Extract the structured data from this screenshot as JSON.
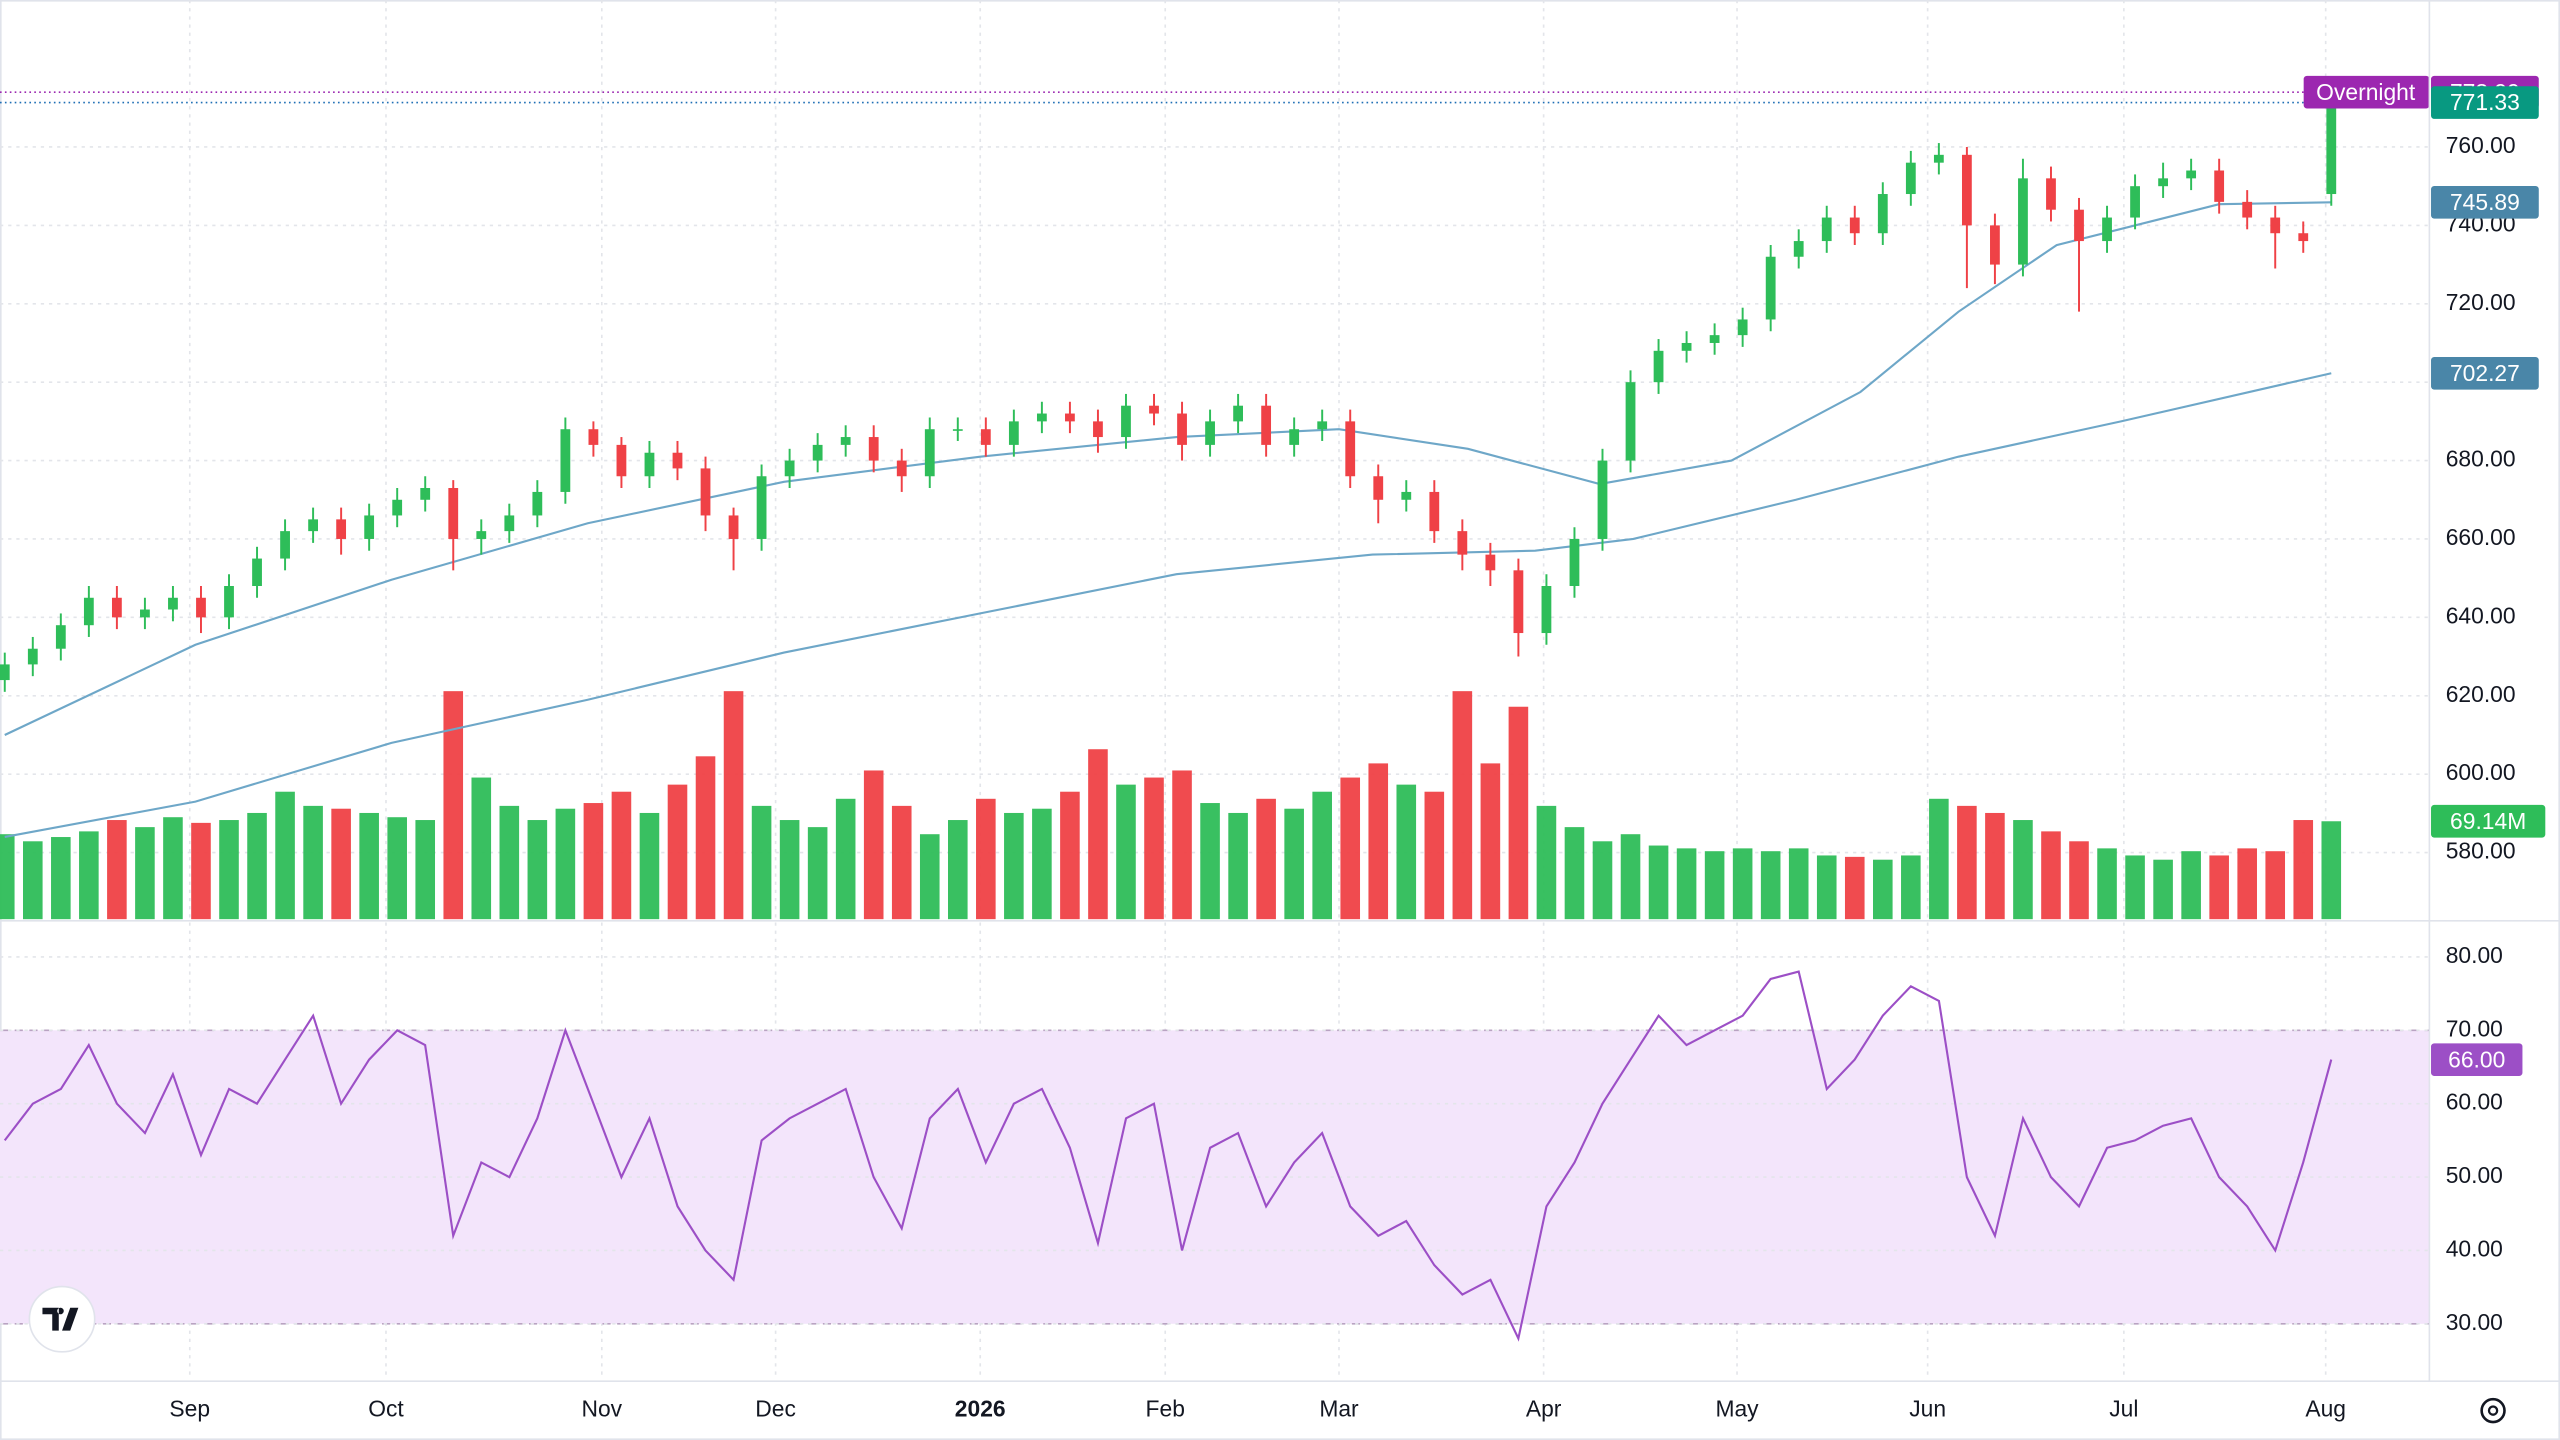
{
  "chart_data": [
    {
      "type": "candlestick",
      "up_color": "#2ebd59",
      "down_color": "#ef4146",
      "xlim": [
        -0.17,
        86.5
      ],
      "xticks": [
        {
          "value": 6.6,
          "label": "Sep"
        },
        {
          "value": 13.6,
          "label": "Oct"
        },
        {
          "value": 21.3,
          "label": "Nov"
        },
        {
          "value": 27.5,
          "label": "Dec"
        },
        {
          "value": 34.8,
          "label": "2026"
        },
        {
          "value": 41.4,
          "label": "Feb"
        },
        {
          "value": 47.6,
          "label": "Mar"
        },
        {
          "value": 54.9,
          "label": "Apr"
        },
        {
          "value": 61.8,
          "label": "May"
        },
        {
          "value": 68.6,
          "label": "Jun"
        },
        {
          "value": 75.6,
          "label": "Jul"
        },
        {
          "value": 82.8,
          "label": "Aug"
        }
      ],
      "ylim": [
        563,
        797.5
      ],
      "yticks": [
        {
          "value": 580,
          "label": "580.00"
        },
        {
          "value": 600,
          "label": "600.00"
        },
        {
          "value": 620,
          "label": "620.00"
        },
        {
          "value": 640,
          "label": "640.00"
        },
        {
          "value": 660,
          "label": "660.00"
        },
        {
          "value": 680,
          "label": "680.00"
        },
        {
          "value": 700,
          "label": "700.00"
        },
        {
          "value": 720,
          "label": "720.00"
        },
        {
          "value": 740,
          "label": "740.00"
        },
        {
          "value": 760,
          "label": "760.00"
        }
      ],
      "grid": true,
      "open": [
        624,
        628,
        632,
        638,
        645,
        640,
        642,
        645,
        640,
        648,
        655,
        662,
        665,
        660,
        666,
        670,
        673,
        660,
        662,
        666,
        672,
        688,
        684,
        676,
        682,
        678,
        666,
        660,
        676,
        680,
        684,
        686,
        680,
        676,
        688,
        688,
        684,
        690,
        692,
        690,
        686,
        694,
        692,
        684,
        690,
        694,
        684,
        688,
        690,
        676,
        670,
        672,
        662,
        656,
        652,
        636,
        648,
        660,
        680,
        700,
        708,
        710,
        712,
        716,
        732,
        736,
        742,
        738,
        748,
        756,
        758,
        740,
        730,
        752,
        744,
        736,
        742,
        750,
        752,
        754,
        746,
        742,
        738,
        748
      ],
      "high": [
        631,
        635,
        641,
        648,
        648,
        645,
        648,
        648,
        651,
        658,
        665,
        668,
        668,
        669,
        673,
        676,
        675,
        665,
        669,
        675,
        691,
        690,
        686,
        685,
        685,
        681,
        668,
        679,
        683,
        687,
        689,
        689,
        683,
        691,
        691,
        691,
        693,
        695,
        695,
        693,
        697,
        697,
        695,
        693,
        697,
        697,
        691,
        693,
        693,
        679,
        675,
        675,
        665,
        659,
        655,
        651,
        663,
        683,
        703,
        711,
        713,
        715,
        719,
        735,
        739,
        745,
        745,
        751,
        759,
        761,
        760,
        743,
        757,
        755,
        747,
        745,
        753,
        756,
        757,
        757,
        749,
        745,
        741,
        775
      ],
      "low": [
        621,
        625,
        629,
        635,
        637,
        637,
        639,
        636,
        637,
        645,
        652,
        659,
        656,
        657,
        663,
        667,
        652,
        656,
        659,
        663,
        669,
        681,
        673,
        673,
        675,
        662,
        652,
        657,
        673,
        677,
        681,
        677,
        672,
        673,
        685,
        681,
        681,
        687,
        687,
        682,
        683,
        689,
        680,
        681,
        687,
        681,
        681,
        685,
        673,
        664,
        667,
        659,
        652,
        648,
        630,
        633,
        645,
        657,
        677,
        697,
        705,
        707,
        709,
        713,
        729,
        733,
        735,
        735,
        745,
        753,
        724,
        725,
        727,
        741,
        718,
        733,
        739,
        747,
        749,
        743,
        739,
        729,
        733,
        745
      ],
      "close": [
        628,
        632,
        638,
        645,
        640,
        642,
        645,
        640,
        648,
        655,
        662,
        665,
        660,
        666,
        670,
        673,
        660,
        662,
        666,
        672,
        688,
        684,
        676,
        682,
        678,
        666,
        660,
        676,
        680,
        684,
        686,
        680,
        676,
        688,
        688,
        684,
        690,
        692,
        690,
        686,
        694,
        692,
        684,
        690,
        694,
        684,
        688,
        690,
        676,
        670,
        672,
        662,
        656,
        652,
        636,
        648,
        660,
        680,
        700,
        708,
        710,
        712,
        716,
        732,
        736,
        742,
        738,
        748,
        756,
        758,
        740,
        730,
        752,
        744,
        736,
        742,
        750,
        752,
        754,
        746,
        742,
        738,
        736,
        771.33
      ],
      "volume": {
        "ylim": [
          0,
          649
        ],
        "last_value_label": "69.14M",
        "values": [
          60,
          55,
          58,
          62,
          70,
          65,
          72,
          68,
          70,
          75,
          90,
          80,
          78,
          75,
          72,
          70,
          161,
          100,
          80,
          70,
          78,
          82,
          90,
          75,
          95,
          115,
          161,
          80,
          70,
          65,
          85,
          105,
          80,
          60,
          70,
          85,
          75,
          78,
          90,
          120,
          95,
          100,
          105,
          82,
          75,
          85,
          78,
          90,
          100,
          110,
          95,
          90,
          161,
          110,
          150,
          80,
          65,
          55,
          60,
          52,
          50,
          48,
          50,
          48,
          50,
          45,
          44,
          42,
          45,
          85,
          80,
          75,
          70,
          62,
          55,
          50,
          45,
          42,
          48,
          45,
          50,
          48,
          70,
          69.14
        ]
      },
      "lines": [
        {
          "color": "#6ea7c8",
          "tag_color": "#4a86a8",
          "x": [
            0,
            6.8,
            13.8,
            20.8,
            27.8,
            34.8,
            41.8,
            47.6,
            52.2,
            56.9,
            61.6,
            66.2,
            69.7,
            73.2,
            79.0,
            83
          ],
          "values": [
            610,
            633,
            649.6,
            664,
            674.6,
            681,
            686,
            688,
            683,
            674,
            680,
            697.5,
            718,
            735,
            745.4,
            745.89
          ]
        },
        {
          "color": "#6ea7c8",
          "tag_color": "#4a86a8",
          "x": [
            0,
            6.8,
            13.8,
            20.8,
            27.8,
            34.8,
            41.8,
            48.8,
            54.6,
            58.1,
            63.9,
            69.7,
            75.5,
            83
          ],
          "values": [
            584,
            593,
            608,
            619,
            631,
            641,
            651,
            656,
            657,
            660,
            670,
            681,
            690,
            702.27
          ]
        }
      ],
      "overnight": {
        "text": "Overnight",
        "value": 773.99,
        "color": "#9c27b0"
      }
    },
    {
      "type": "line",
      "color": "#9c4fc6",
      "band_color": "#f3e5fb",
      "ylim": [
        22.4,
        84.7
      ],
      "yticks": [
        {
          "value": 30,
          "label": "30.00"
        },
        {
          "value": 40,
          "label": "40.00"
        },
        {
          "value": 50,
          "label": "50.00"
        },
        {
          "value": 60,
          "label": "60.00"
        },
        {
          "value": 70,
          "label": "70.00"
        },
        {
          "value": 80,
          "label": "80.00"
        }
      ],
      "band": [
        30,
        70
      ],
      "last_value_label": "66.00",
      "values": [
        55,
        60,
        62,
        68,
        60,
        56,
        64,
        53,
        62,
        60,
        66,
        72,
        60,
        66,
        70,
        68,
        42,
        52,
        50,
        58,
        70,
        60,
        50,
        58,
        46,
        40,
        36,
        55,
        58,
        60,
        62,
        50,
        43,
        58,
        62,
        52,
        60,
        62,
        54,
        41,
        58,
        60,
        40,
        54,
        56,
        46,
        52,
        56,
        46,
        42,
        44,
        38,
        34,
        36,
        28,
        46,
        52,
        60,
        66,
        72,
        68,
        70,
        72,
        77,
        78,
        62,
        66,
        72,
        76,
        74,
        50,
        42,
        58,
        50,
        46,
        54,
        55,
        57,
        58,
        50,
        46,
        40,
        52,
        66
      ]
    }
  ]
}
